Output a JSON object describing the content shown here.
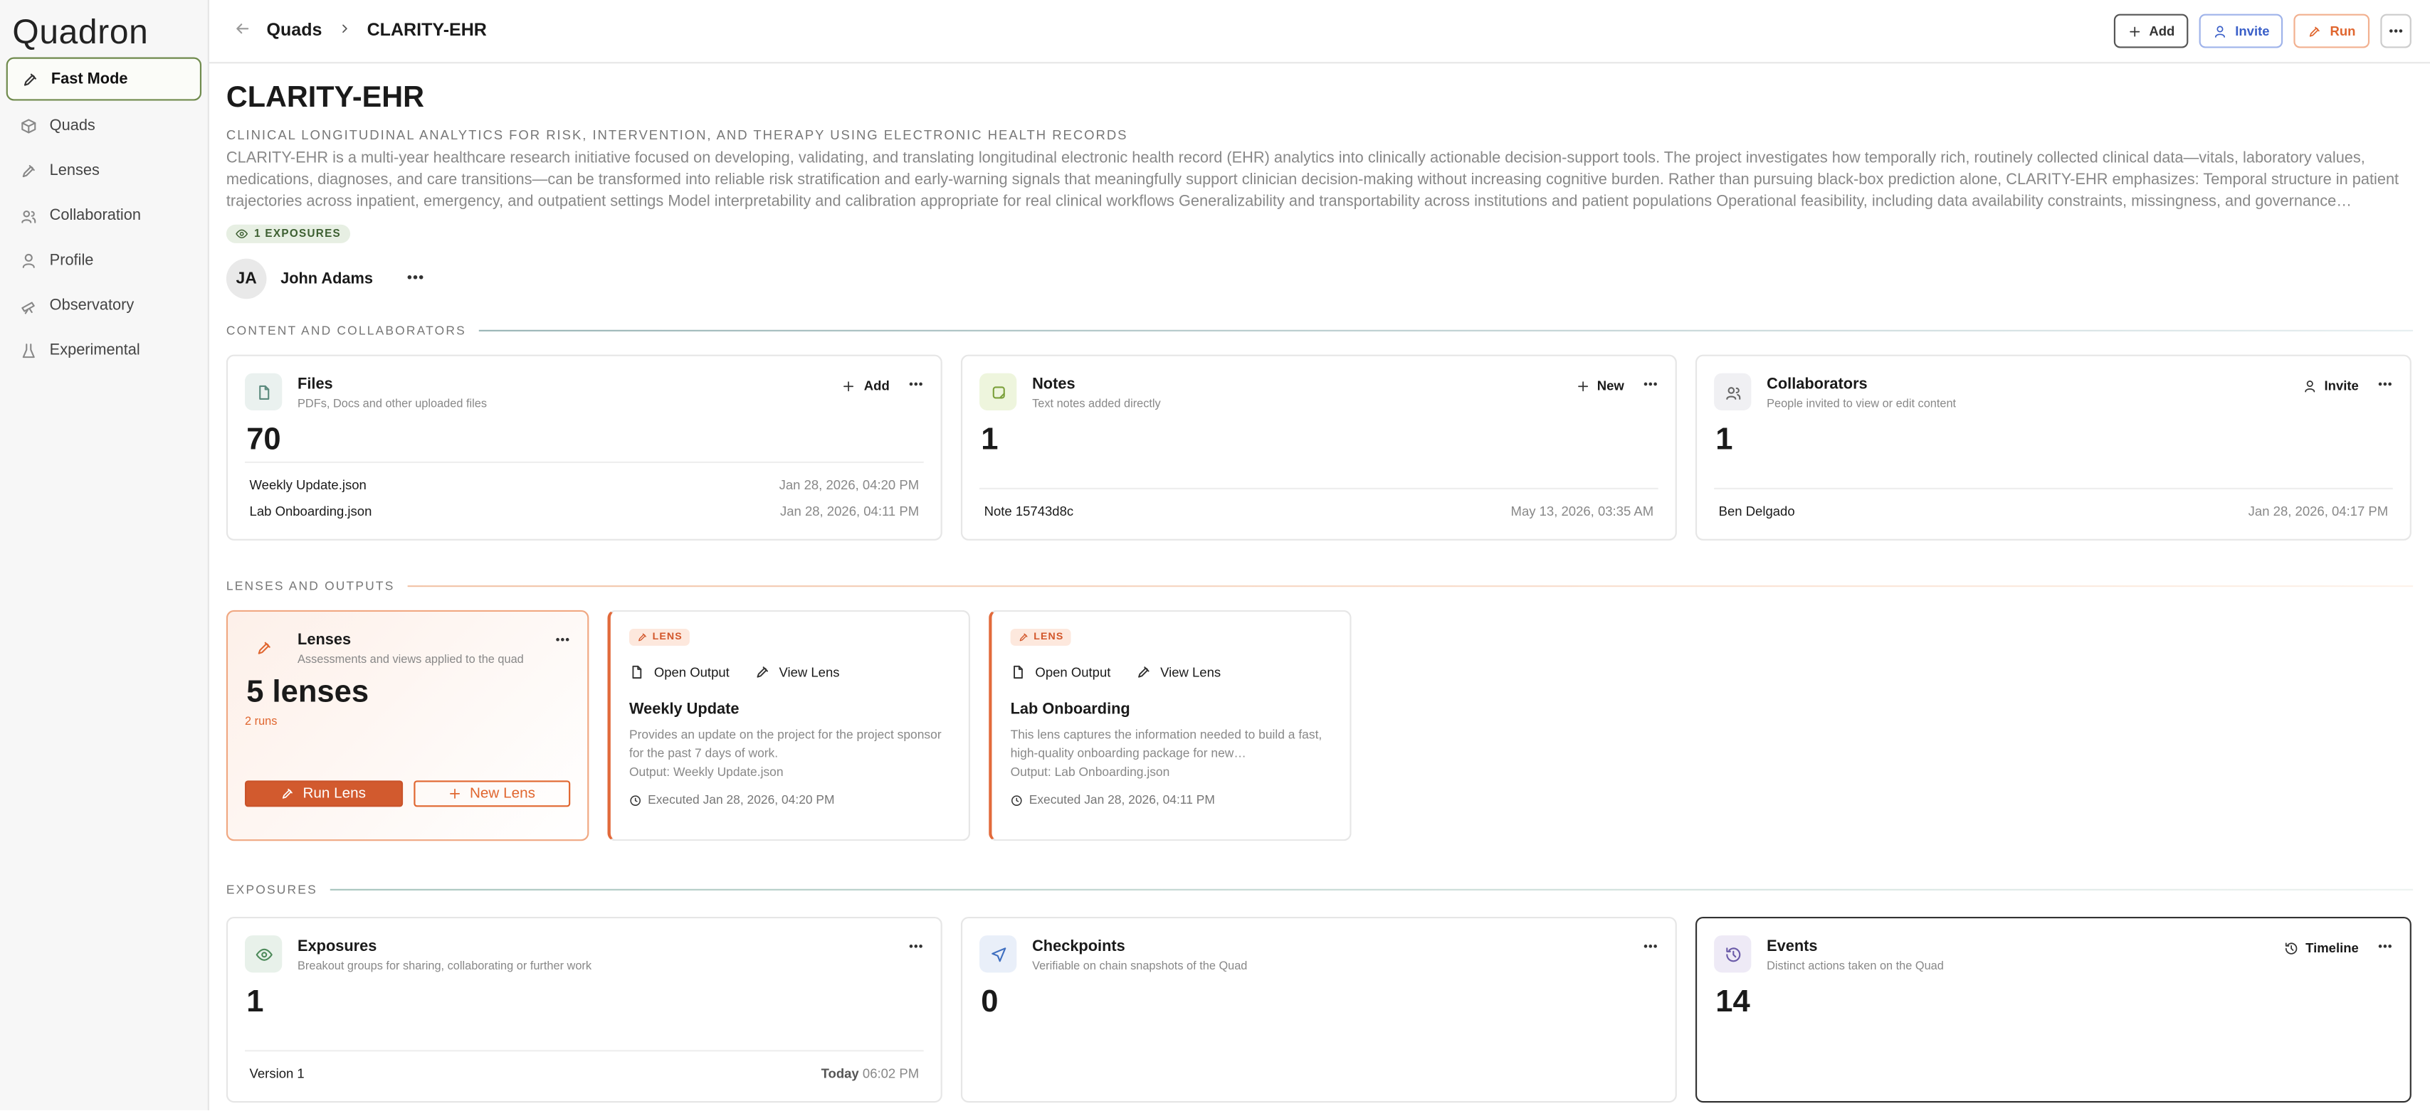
{
  "sidebar": {
    "logo": "Quadron",
    "items": [
      "Fast Mode",
      "Quads",
      "Lenses",
      "Collaboration",
      "Profile",
      "Observatory",
      "Experimental"
    ]
  },
  "header": {
    "breadcrumb": [
      "Quads",
      "CLARITY-EHR"
    ],
    "buttons": [
      "Add",
      "Invite",
      "Run"
    ]
  },
  "project": {
    "title": "CLARITY-EHR",
    "subtitle": "CLINICAL LONGITUDINAL ANALYTICS FOR RISK, INTERVENTION, AND THERAPY USING ELECTRONIC HEALTH RECORDS",
    "description": "CLARITY-EHR is a multi-year healthcare research initiative focused on developing, validating, and translating longitudinal electronic health record (EHR) analytics into clinically actionable decision-support tools. The project investigates how temporally rich, routinely collected clinical data—vitals, laboratory values, medications, diagnoses, and care transitions—can be transformed into reliable risk stratification and early-warning signals that meaningfully support clinician decision-making without increasing cognitive burden. Rather than pursuing black-box prediction alone, CLARITY-EHR emphasizes: Temporal structure in patient trajectories across inpatient, emergency, and outpatient settings Model interpretability and calibration appropriate for real clinical workflows Generalizability and transportability across institutions and patient populations Operational feasibility, including data availability constraints, missingness, and governance…",
    "badge": "1 EXPOSURES",
    "owner_initials": "JA",
    "owner": "John Adams"
  },
  "content": {
    "heading": "CONTENT AND COLLABORATORS",
    "cards": [
      {
        "title": "Files",
        "subtitle": "PDFs, Docs and other uploaded files",
        "action": "Add",
        "count": 70,
        "rows": [
          {
            "name": "Weekly Update.json",
            "date": "Jan 28, 2026, 04:20 PM"
          },
          {
            "name": "Lab Onboarding.json",
            "date": "Jan 28, 2026, 04:11 PM"
          }
        ]
      },
      {
        "title": "Notes",
        "subtitle": "Text notes added directly",
        "action": "New",
        "count": 1,
        "rows": [
          {
            "name": "Note 15743d8c",
            "date": "May 13, 2026, 03:35 AM"
          }
        ]
      },
      {
        "title": "Collaborators",
        "subtitle": "People invited to view or edit content",
        "action": "Invite",
        "count": 1,
        "rows": [
          {
            "name": "Ben Delgado",
            "date": "Jan 28, 2026, 04:17 PM"
          }
        ]
      }
    ]
  },
  "lenses": {
    "heading": "LENSES AND OUTPUTS",
    "summary": {
      "title": "Lenses",
      "subtitle": "Assessments and views applied to the quad",
      "count": "5 lenses",
      "runs": "2 runs",
      "buttons": [
        "Run Lens",
        "New Lens"
      ]
    },
    "items": [
      {
        "tag": "LENS",
        "actions": [
          "Open Output",
          "View Lens"
        ],
        "title": "Weekly Update",
        "description": "Provides an update on the project for the project sponsor for the past 7 days of work.",
        "output": "Output: Weekly Update.json",
        "executed": "Executed Jan 28, 2026, 04:20 PM"
      },
      {
        "tag": "LENS",
        "actions": [
          "Open Output",
          "View Lens"
        ],
        "title": "Lab Onboarding",
        "description": "This lens captures the information needed to build a fast, high-quality onboarding package for new…",
        "output": "Output: Lab Onboarding.json",
        "executed": "Executed Jan 28, 2026, 04:11 PM"
      }
    ]
  },
  "exposures": {
    "heading": "EXPOSURES",
    "cards": [
      {
        "title": "Exposures",
        "subtitle": "Breakout groups for sharing, collaborating or further work",
        "count": 1,
        "rows": [
          {
            "name": "Version 1",
            "day": "Today",
            "time": "06:02 PM"
          }
        ]
      },
      {
        "title": "Checkpoints",
        "subtitle": "Verifiable on chain snapshots of the Quad",
        "count": 0
      },
      {
        "title": "Events",
        "subtitle": "Distinct actions taken on the Quad",
        "action": "Timeline",
        "count": 14
      }
    ]
  }
}
